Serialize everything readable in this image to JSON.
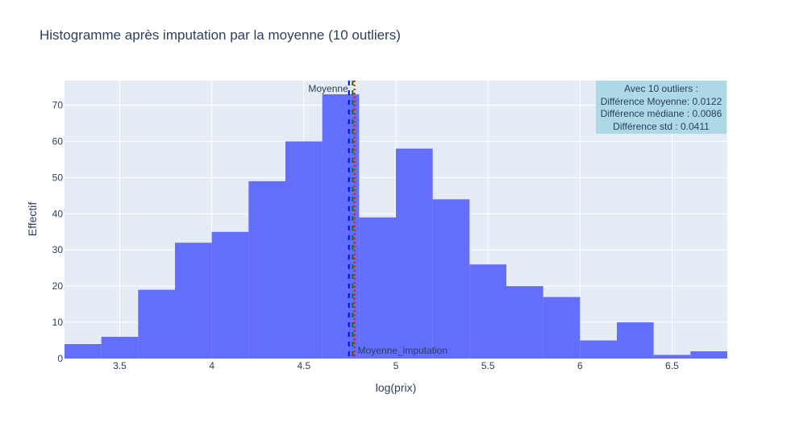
{
  "chart_data": {
    "type": "bar",
    "title": "Histogramme après imputation par la moyenne (10 outliers)",
    "xlabel": "log(prix)",
    "ylabel": "Effectif",
    "xlim": [
      3.2,
      6.8
    ],
    "ylim": [
      0,
      76.8
    ],
    "x_ticks": [
      3.5,
      4,
      4.5,
      5,
      5.5,
      6,
      6.5
    ],
    "x_tick_labels": [
      "3.5",
      "4",
      "4.5",
      "5",
      "5.5",
      "6",
      "6.5"
    ],
    "y_ticks": [
      0,
      10,
      20,
      30,
      40,
      50,
      60,
      70
    ],
    "y_tick_labels": [
      "0",
      "10",
      "20",
      "30",
      "40",
      "50",
      "60",
      "70"
    ],
    "bin_edges": [
      3.2,
      3.4,
      3.6,
      3.8,
      4.0,
      4.2,
      4.4,
      4.6,
      4.8,
      5.0,
      5.2,
      5.4,
      5.6,
      5.8,
      6.0,
      6.2,
      6.4,
      6.6,
      6.8
    ],
    "values": [
      4,
      6,
      19,
      32,
      35,
      49,
      60,
      73,
      39,
      58,
      44,
      26,
      20,
      17,
      5,
      10,
      1,
      2
    ],
    "bar_color": "#636efa",
    "grid": true,
    "vlines": [
      {
        "label": "Moyenne",
        "x": 4.745,
        "color": "#0000ff",
        "style": "dash"
      },
      {
        "label": "",
        "x": 4.765,
        "color": "#008000",
        "style": "dash"
      },
      {
        "label": "Moyenne_imputation",
        "x": 4.775,
        "color": "#ff0000",
        "style": "dot"
      }
    ],
    "annotation": {
      "lines": [
        "Avec 10 outliers :",
        "Différence Moyenne: 0.0122",
        "Différence médiane : 0.0086",
        "Différence std : 0.0411"
      ],
      "background": "#add8e6",
      "position": "top-right"
    }
  }
}
